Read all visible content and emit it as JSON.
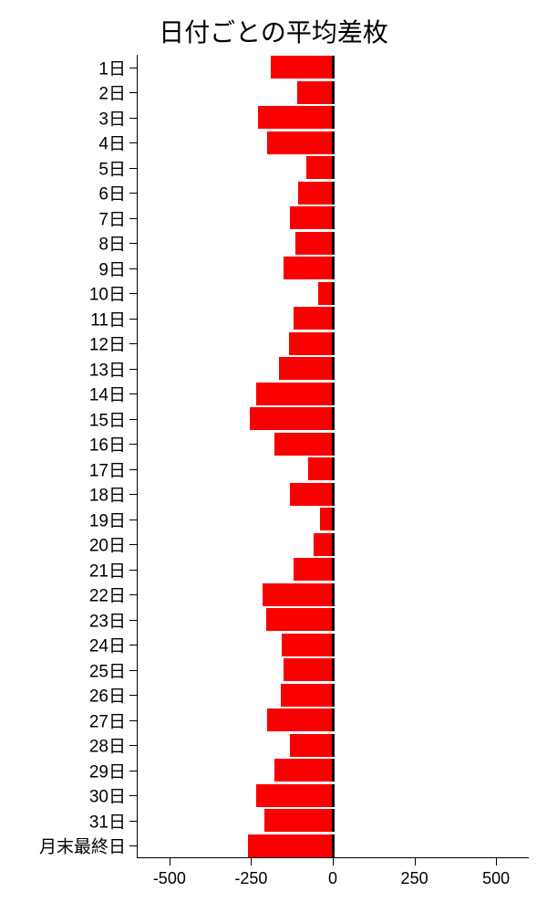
{
  "chart": {
    "type": "bar-horizontal",
    "title": "日付ごとの平均差枚",
    "title_fontsize": 28,
    "title_color": "#000000",
    "background_color": "#ffffff",
    "bar_color": "#fa0000",
    "bar_border_color": "#000000",
    "axis_color": "#000000",
    "tick_color": "#000000",
    "tick_label_color": "#000000",
    "tick_label_fontsize": 18,
    "y_label_fontsize": 19,
    "x_axis": {
      "min": -600,
      "max": 600,
      "ticks": [
        -500,
        -250,
        0,
        250,
        500
      ]
    },
    "bar_width_ratio": 0.9,
    "categories": [
      "1日",
      "2日",
      "3日",
      "4日",
      "5日",
      "6日",
      "7日",
      "8日",
      "9日",
      "10日",
      "11日",
      "12日",
      "13日",
      "14日",
      "15日",
      "16日",
      "17日",
      "18日",
      "19日",
      "20日",
      "21日",
      "22日",
      "23日",
      "24日",
      "25日",
      "26日",
      "27日",
      "28日",
      "29日",
      "30日",
      "31日",
      "月末最終日"
    ],
    "values": [
      -190,
      -110,
      -230,
      -200,
      -80,
      -105,
      -130,
      -115,
      -150,
      -45,
      -120,
      -135,
      -165,
      -235,
      -255,
      -180,
      -75,
      -130,
      -40,
      -60,
      -120,
      -215,
      -205,
      -155,
      -150,
      -160,
      -200,
      -130,
      -180,
      -235,
      -210,
      -260
    ]
  }
}
